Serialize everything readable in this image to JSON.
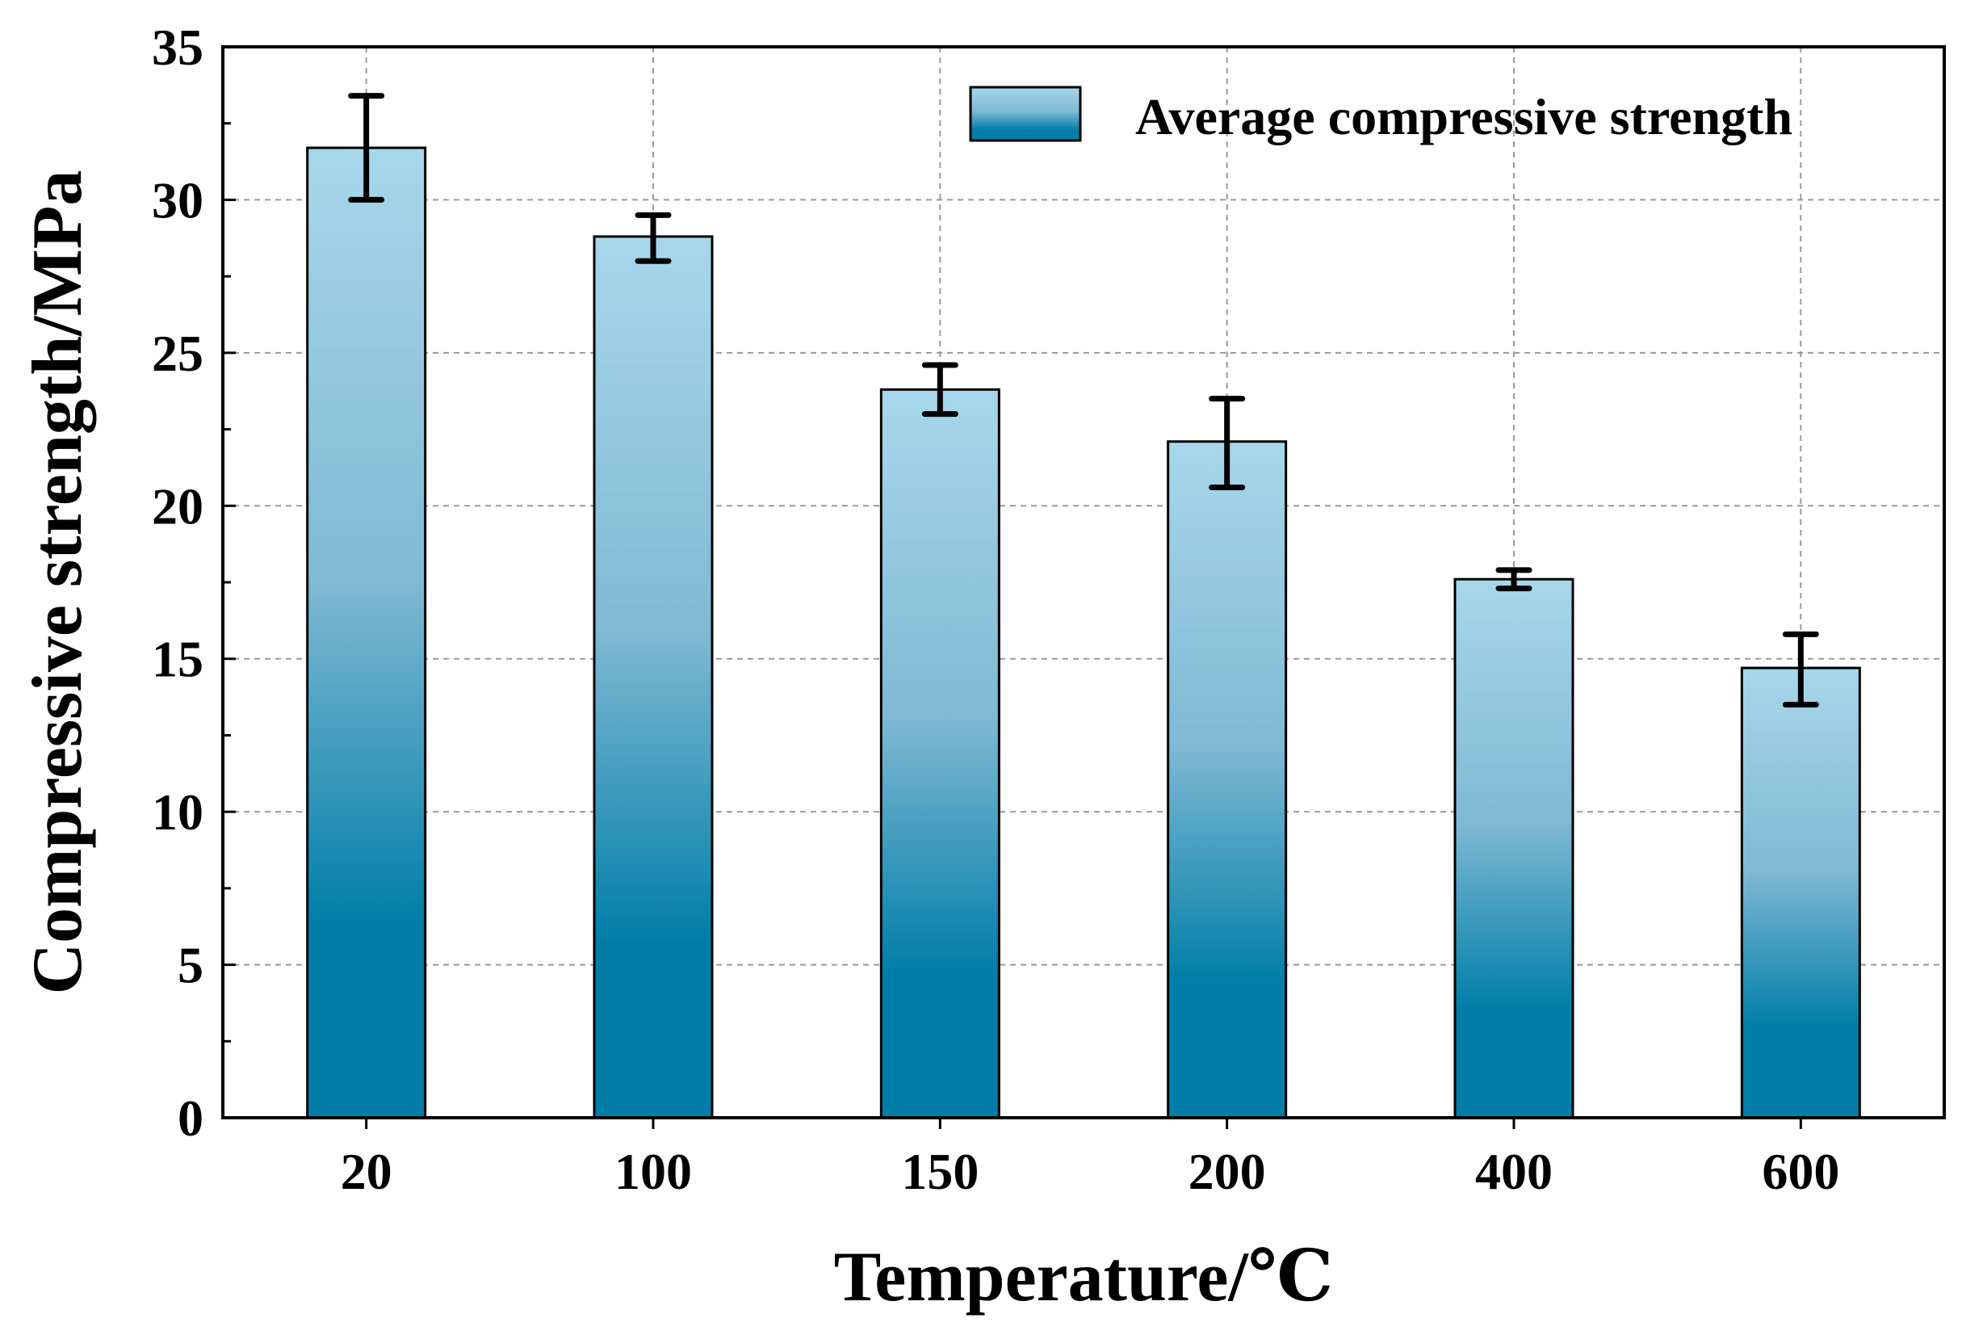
{
  "chart_data": {
    "type": "bar",
    "title": "",
    "xlabel": "Temperature/℃",
    "ylabel": "Compressive strength/MPa",
    "categories": [
      "20",
      "100",
      "150",
      "200",
      "400",
      "600"
    ],
    "series": [
      {
        "name": "Average compressive strength",
        "values": [
          31.7,
          28.8,
          23.8,
          22.1,
          17.6,
          14.7
        ],
        "error_low": [
          1.7,
          0.8,
          0.8,
          1.5,
          0.3,
          1.2
        ],
        "error_high": [
          1.7,
          0.7,
          0.8,
          1.4,
          0.3,
          1.1
        ]
      }
    ],
    "ylim": [
      0,
      35
    ],
    "yticks": [
      0,
      5,
      10,
      15,
      20,
      25,
      30,
      35
    ],
    "grid": true,
    "legend_position": "top-right",
    "colors": {
      "bar_top": "#a8d7ea",
      "bar_mid": "#7fb9d4",
      "bar_bottom": "#007ea7",
      "bar_edge": "#000000",
      "error_bar": "#000000",
      "grid": "#9a9a9a",
      "axis": "#000000"
    }
  }
}
